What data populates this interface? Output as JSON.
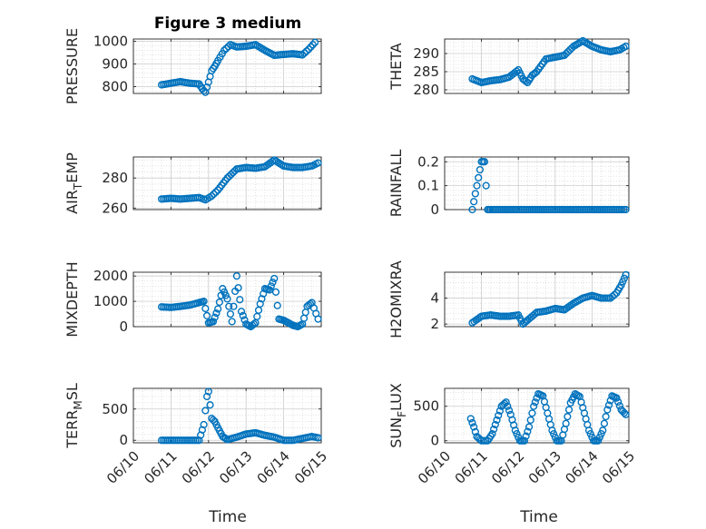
{
  "figure": {
    "title": "Figure 3 medium",
    "xlabel": "Time"
  },
  "colors": {
    "marker": "#0072BD",
    "grid": "#dcdcdc",
    "axis": "#262626"
  },
  "chart_data": [
    {
      "type": "scatter",
      "title": "Figure 3 medium",
      "ylabel": "PRESSURE",
      "ylabel_sub": "",
      "ylabel_after": "",
      "xlim": [
        "06/10",
        "06/15"
      ],
      "ylim": [
        770,
        1010
      ],
      "yticks": [
        800,
        900,
        1000
      ],
      "xticklabels": [],
      "x": [
        "06/10 18:00",
        "06/11 00:00",
        "06/11 06:00",
        "06/11 12:00",
        "06/11 18:00",
        "06/11 20:00",
        "06/11 22:00",
        "06/12 00:00",
        "06/12 02:00",
        "06/12 04:00",
        "06/12 06:00",
        "06/12 10:00",
        "06/12 14:00",
        "06/12 18:00",
        "06/13 00:00",
        "06/13 06:00",
        "06/13 12:00",
        "06/13 18:00",
        "06/14 00:00",
        "06/14 06:00",
        "06/14 12:00",
        "06/14 16:00",
        "06/14 20:00"
      ],
      "y": [
        808,
        815,
        822,
        815,
        812,
        790,
        775,
        820,
        870,
        890,
        915,
        960,
        985,
        975,
        978,
        985,
        960,
        938,
        942,
        945,
        940,
        965,
        995
      ]
    },
    {
      "type": "scatter",
      "title": "",
      "ylabel": "THETA",
      "ylabel_sub": "",
      "ylabel_after": "",
      "xlim": [
        "06/10",
        "06/15"
      ],
      "ylim": [
        279,
        294
      ],
      "yticks": [
        280,
        285,
        290
      ],
      "xticklabels": [],
      "x": [
        "06/10 18:00",
        "06/11 00:00",
        "06/11 06:00",
        "06/11 12:00",
        "06/11 18:00",
        "06/12 00:00",
        "06/12 03:00",
        "06/12 06:00",
        "06/12 09:00",
        "06/12 12:00",
        "06/12 18:00",
        "06/13 00:00",
        "06/13 06:00",
        "06/13 12:00",
        "06/13 18:00",
        "06/14 00:00",
        "06/14 06:00",
        "06/14 12:00",
        "06/14 18:00",
        "06/14 22:00"
      ],
      "y": [
        283,
        282,
        282.5,
        282.8,
        283.5,
        285.5,
        283,
        282,
        284,
        285,
        288.5,
        289,
        289.5,
        292,
        293.5,
        292,
        291,
        290.5,
        291,
        292
      ]
    },
    {
      "type": "scatter",
      "title": "",
      "ylabel": "AIR",
      "ylabel_sub": "T",
      "ylabel_after": "EMP",
      "xlim": [
        "06/10",
        "06/15"
      ],
      "ylim": [
        259,
        294
      ],
      "yticks": [
        260,
        280
      ],
      "xticklabels": [],
      "x": [
        "06/10 18:00",
        "06/11 00:00",
        "06/11 06:00",
        "06/11 12:00",
        "06/11 18:00",
        "06/11 22:00",
        "06/12 02:00",
        "06/12 06:00",
        "06/12 12:00",
        "06/12 18:00",
        "06/13 00:00",
        "06/13 06:00",
        "06/13 12:00",
        "06/13 18:00",
        "06/14 00:00",
        "06/14 06:00",
        "06/14 12:00",
        "06/14 18:00",
        "06/14 22:00"
      ],
      "y": [
        266,
        266.5,
        266,
        266.5,
        267,
        265.5,
        268,
        272,
        280,
        286,
        287,
        286.5,
        287.5,
        292,
        288,
        287,
        287,
        288,
        290
      ]
    },
    {
      "type": "scatter",
      "title": "",
      "ylabel": "RAINFALL",
      "ylabel_sub": "",
      "ylabel_after": "",
      "xlim": [
        "06/10",
        "06/15"
      ],
      "ylim": [
        0,
        0.22
      ],
      "yticks": [
        0,
        0.1,
        0.2
      ],
      "xticklabels": [],
      "x": [
        "06/10 18:00",
        "06/10 21:00",
        "06/11 00:00",
        "06/11 02:00",
        "06/11 04:00",
        "06/11 06:00",
        "06/11 12:00",
        "06/11 18:00",
        "06/12 00:00",
        "06/12 06:00",
        "06/12 12:00",
        "06/12 18:00",
        "06/13 00:00",
        "06/13 06:00",
        "06/13 12:00",
        "06/13 18:00",
        "06/14 00:00",
        "06/14 06:00",
        "06/14 12:00",
        "06/14 18:00",
        "06/14 22:00"
      ],
      "y": [
        0,
        0.1,
        0.2,
        0.2,
        0,
        0,
        0,
        0,
        0,
        0,
        0,
        0,
        0,
        0,
        0,
        0,
        0,
        0,
        0,
        0,
        0
      ]
    },
    {
      "type": "scatter",
      "title": "",
      "ylabel": "MIXDEPTH",
      "ylabel_sub": "",
      "ylabel_after": "",
      "xlim": [
        "06/10",
        "06/15"
      ],
      "ylim": [
        0,
        2150
      ],
      "yticks": [
        0,
        1000,
        2000
      ],
      "xticklabels": [],
      "x": [
        "06/10 18:00",
        "06/11 00:00",
        "06/11 06:00",
        "06/11 12:00",
        "06/11 18:00",
        "06/11 21:00",
        "06/12 00:00",
        "06/12 03:00",
        "06/12 06:00",
        "06/12 09:00",
        "06/12 12:00",
        "06/12 15:00",
        "06/12 18:00",
        "06/12 21:00",
        "06/13 00:00",
        "06/13 03:00",
        "06/13 06:00",
        "06/13 09:00",
        "06/13 12:00",
        "06/13 15:00",
        "06/13 18:00",
        "06/13 21:00",
        "06/14 00:00",
        "06/14 03:00",
        "06/14 06:00",
        "06/14 09:00",
        "06/14 12:00",
        "06/14 15:00",
        "06/14 18:00",
        "06/14 22:00"
      ],
      "y": [
        780,
        760,
        800,
        850,
        950,
        1000,
        150,
        200,
        700,
        1500,
        1100,
        200,
        2000,
        600,
        100,
        0,
        150,
        900,
        1500,
        1450,
        1900,
        300,
        250,
        150,
        50,
        0,
        100,
        800,
        950,
        300
      ]
    },
    {
      "type": "scatter",
      "title": "",
      "ylabel": "H2OMIXRA",
      "ylabel_sub": "",
      "ylabel_after": "",
      "xlim": [
        "06/10",
        "06/15"
      ],
      "ylim": [
        1.8,
        6.0
      ],
      "yticks": [
        2,
        4
      ],
      "xticklabels": [],
      "x": [
        "06/10 18:00",
        "06/11 00:00",
        "06/11 06:00",
        "06/11 12:00",
        "06/11 18:00",
        "06/12 00:00",
        "06/12 03:00",
        "06/12 06:00",
        "06/12 12:00",
        "06/12 18:00",
        "06/13 00:00",
        "06/13 06:00",
        "06/13 12:00",
        "06/13 18:00",
        "06/14 00:00",
        "06/14 06:00",
        "06/14 12:00",
        "06/14 16:00",
        "06/14 19:00",
        "06/14 22:00"
      ],
      "y": [
        2.1,
        2.6,
        2.7,
        2.6,
        2.6,
        2.7,
        2.0,
        2.3,
        2.9,
        3.0,
        3.2,
        3.1,
        3.6,
        4.0,
        4.2,
        4.0,
        4.0,
        4.4,
        5.0,
        5.8
      ]
    },
    {
      "type": "scatter",
      "title": "",
      "ylabel": "TERR",
      "ylabel_sub": "M",
      "ylabel_after": "SL",
      "xlim": [
        "06/10",
        "06/15"
      ],
      "ylim": [
        -40,
        830
      ],
      "yticks": [
        0,
        500
      ],
      "xticklabels": [
        "06/10",
        "06/11",
        "06/12",
        "06/13",
        "06/14",
        "06/15"
      ],
      "x": [
        "06/10 18:00",
        "06/11 00:00",
        "06/11 06:00",
        "06/11 12:00",
        "06/11 18:00",
        "06/11 21:00",
        "06/11 23:00",
        "06/12 00:00",
        "06/12 02:00",
        "06/12 04:00",
        "06/12 06:00",
        "06/12 09:00",
        "06/12 12:00",
        "06/12 18:00",
        "06/13 00:00",
        "06/13 06:00",
        "06/13 12:00",
        "06/13 18:00",
        "06/14 00:00",
        "06/14 06:00",
        "06/14 12:00",
        "06/14 18:00",
        "06/14 22:00"
      ],
      "y": [
        0,
        0,
        0,
        0,
        0,
        250,
        700,
        780,
        350,
        300,
        200,
        60,
        10,
        50,
        100,
        120,
        80,
        50,
        0,
        0,
        30,
        60,
        40
      ]
    },
    {
      "type": "scatter",
      "title": "",
      "ylabel": "SUN",
      "ylabel_sub": "F",
      "ylabel_after": "LUX",
      "xlim": [
        "06/10",
        "06/15"
      ],
      "ylim": [
        -30,
        760
      ],
      "yticks": [
        0,
        500
      ],
      "xticklabels": [
        "06/10",
        "06/11",
        "06/12",
        "06/13",
        "06/14",
        "06/15"
      ],
      "x": [
        "06/10 17:00",
        "06/10 19:00",
        "06/10 21:00",
        "06/11 00:00",
        "06/11 04:00",
        "06/11 07:00",
        "06/11 10:00",
        "06/11 13:00",
        "06/11 16:00",
        "06/11 19:00",
        "06/11 22:00",
        "06/12 01:00",
        "06/12 04:00",
        "06/12 07:00",
        "06/12 10:00",
        "06/12 13:00",
        "06/12 16:00",
        "06/12 19:00",
        "06/12 22:00",
        "06/13 01:00",
        "06/13 04:00",
        "06/13 07:00",
        "06/13 10:00",
        "06/13 13:00",
        "06/13 16:00",
        "06/13 19:00",
        "06/13 22:00",
        "06/14 01:00",
        "06/14 04:00",
        "06/14 07:00",
        "06/14 10:00",
        "06/14 13:00",
        "06/14 16:00",
        "06/14 19:00",
        "06/14 22:00"
      ],
      "y": [
        320,
        200,
        60,
        0,
        0,
        100,
        300,
        500,
        560,
        380,
        150,
        0,
        0,
        200,
        500,
        680,
        650,
        400,
        150,
        0,
        0,
        250,
        550,
        680,
        640,
        400,
        150,
        0,
        0,
        150,
        450,
        650,
        620,
        450,
        380
      ]
    }
  ]
}
